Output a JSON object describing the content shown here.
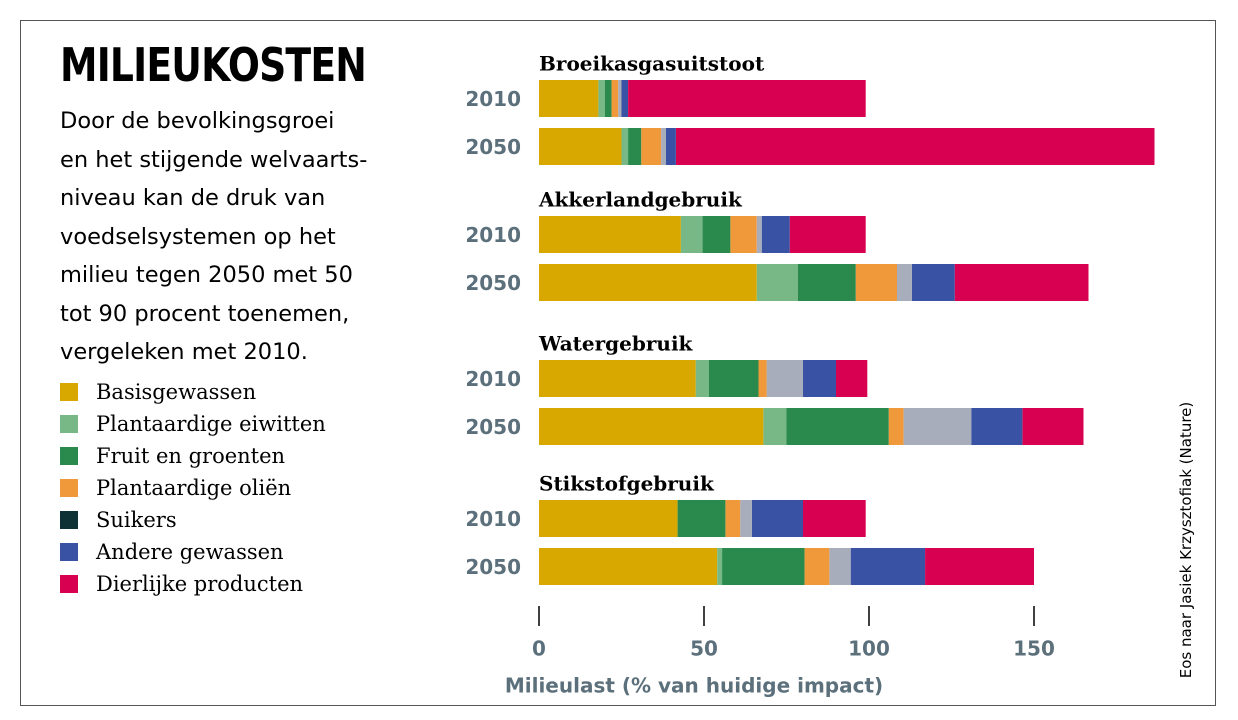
{
  "title": "MILIEUKOSTEN",
  "intro_lines": [
    "Door de bevolkingsgroei",
    "en het stijgende welvaarts-",
    "niveau kan de druk van",
    "voedselsystemen op het",
    "milieu tegen 2050 met 50",
    "tot 90 procent toenemen,",
    "vergeleken met 2010."
  ],
  "credit": "Eos naar Jasiek Krzysztofiak (Nature)",
  "colors": {
    "Basisgewassen": "#d8a800",
    "Plantaardige eiwitten": "#78b887",
    "Fruit en groenten": "#2a8a4e",
    "Plantaardige oliën": "#f0993a",
    "Suikers": "#0d3134",
    "Andere gewassen": "#3a52a3",
    "Dierlijke producten": "#d80050",
    "grijs": "#a7adba"
  },
  "legend": [
    {
      "label": "Basisgewassen",
      "color": "#d8a800"
    },
    {
      "label": "Plantaardige eiwitten",
      "color": "#78b887"
    },
    {
      "label": "Fruit en groenten",
      "color": "#2a8a4e"
    },
    {
      "label": "Plantaardige oliën",
      "color": "#f0993a"
    },
    {
      "label": "Suikers",
      "color": "#0d3134"
    },
    {
      "label": "Andere gewassen",
      "color": "#3a52a3"
    },
    {
      "label": "Dierlijke producten",
      "color": "#d80050"
    }
  ],
  "chart_data": {
    "type": "bar",
    "orientation": "horizontal",
    "stacked": true,
    "xlabel": "Milieulast (% van huidige impact)",
    "xlim": [
      0,
      190
    ],
    "xticks": [
      0,
      50,
      100,
      150
    ],
    "segment_order": [
      "Basisgewassen",
      "Plantaardige eiwitten",
      "Fruit en groenten",
      "Plantaardige oliën",
      "grijs",
      "Andere gewassen",
      "Dierlijke producten"
    ],
    "panels": [
      {
        "title": "Broeikasgasuitstoot",
        "rows": [
          {
            "year": "2010",
            "values": [
              18,
              2,
              2,
              2,
              1,
              2,
              72
            ]
          },
          {
            "year": "2050",
            "values": [
              25,
              2,
              4,
              6,
              1.5,
              3,
              145
            ]
          }
        ]
      },
      {
        "title": "Akkerlandgebruik",
        "rows": [
          {
            "year": "2010",
            "values": [
              43,
              6.5,
              8.5,
              8,
              1.5,
              8.5,
              23
            ]
          },
          {
            "year": "2050",
            "values": [
              66,
              12.5,
              17.5,
              12.5,
              4.5,
              13,
              40.5
            ]
          }
        ]
      },
      {
        "title": "Watergebruik",
        "rows": [
          {
            "year": "2010",
            "values": [
              47.5,
              4,
              15,
              2.5,
              11,
              10,
              9.5
            ]
          },
          {
            "year": "2050",
            "values": [
              68,
              7,
              31,
              4.5,
              20.5,
              15.5,
              18.5
            ]
          }
        ]
      },
      {
        "title": "Stikstofgebruik",
        "rows": [
          {
            "year": "2010",
            "values": [
              42,
              0,
              14.5,
              4.5,
              3.5,
              15.5,
              19
            ]
          },
          {
            "year": "2050",
            "values": [
              54,
              1.5,
              25,
              7.5,
              6.5,
              22.5,
              33
            ]
          }
        ]
      }
    ]
  }
}
